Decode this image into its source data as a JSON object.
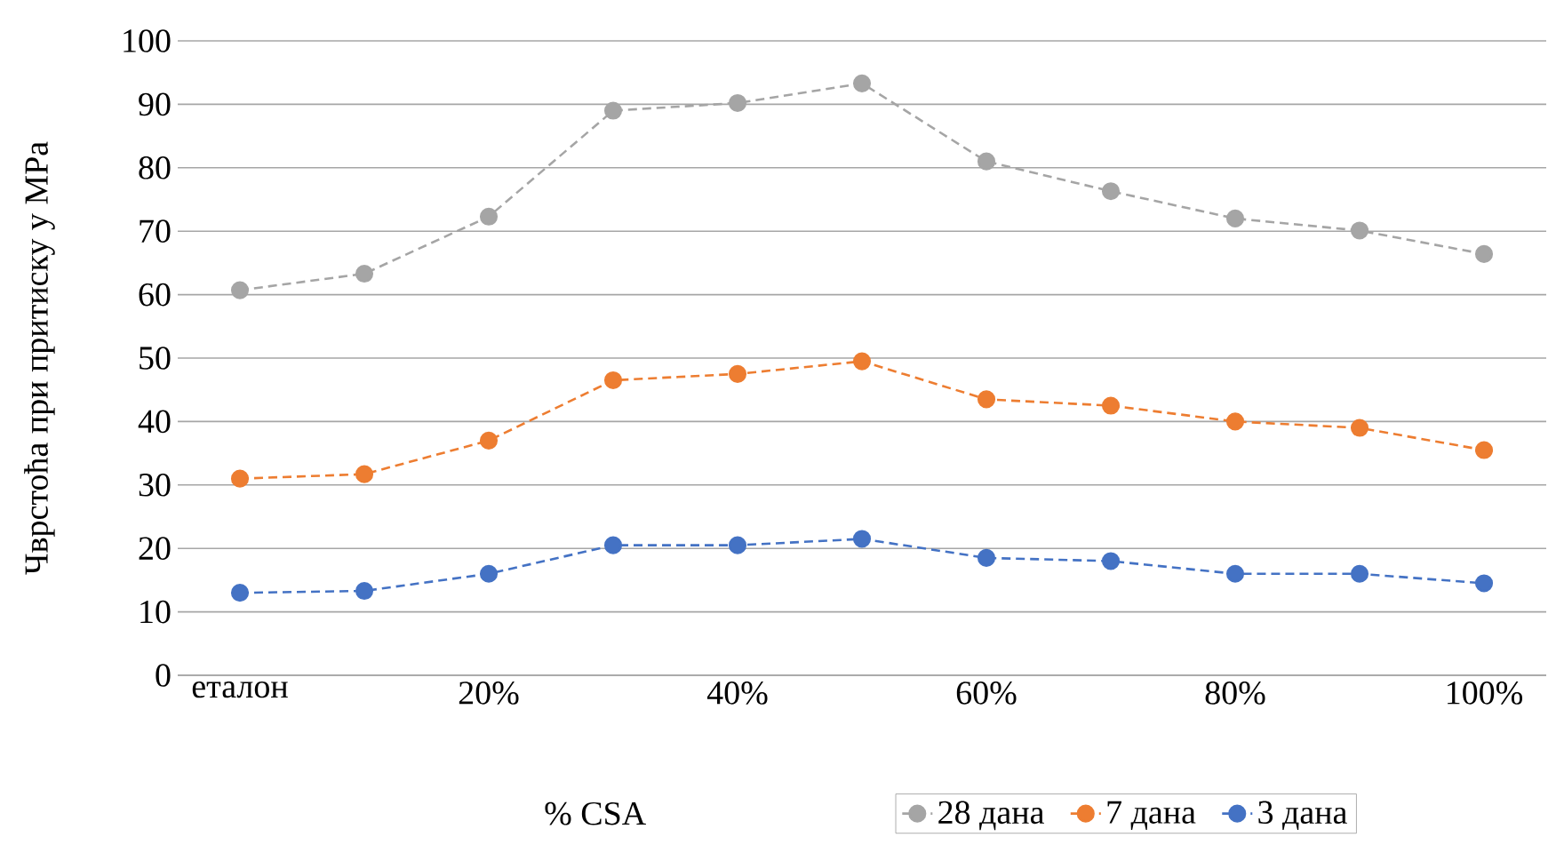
{
  "chart_data": {
    "type": "line",
    "xlabel": "% CSA",
    "ylabel": "Чврстоћа при притиску у MPa",
    "categories": [
      "еталон",
      null,
      "20%",
      null,
      "40%",
      null,
      "60%",
      null,
      "80%",
      null,
      "100%"
    ],
    "series": [
      {
        "name": "28 дана",
        "color": "#a5a5a5",
        "line_style": "dashed",
        "values": [
          60.7,
          63.3,
          72.3,
          89,
          90.2,
          93.3,
          81,
          76.3,
          72,
          70.1,
          66.4
        ]
      },
      {
        "name": "7 дана",
        "color": "#ed7d31",
        "line_style": "dashed",
        "values": [
          31,
          31.7,
          37,
          46.5,
          47.5,
          49.5,
          43.5,
          42.5,
          40,
          39,
          35.5
        ]
      },
      {
        "name": "3 дана",
        "color": "#4472c4",
        "line_style": "dashed",
        "values": [
          13,
          13.3,
          16,
          20.5,
          20.5,
          21.5,
          18.5,
          18,
          16,
          16,
          14.5
        ]
      }
    ],
    "ylim": [
      0,
      100
    ],
    "yticks": [
      0,
      10,
      20,
      30,
      40,
      50,
      60,
      70,
      80,
      90,
      100
    ],
    "grid": "y",
    "legend": "bottom",
    "marker": "circle"
  }
}
